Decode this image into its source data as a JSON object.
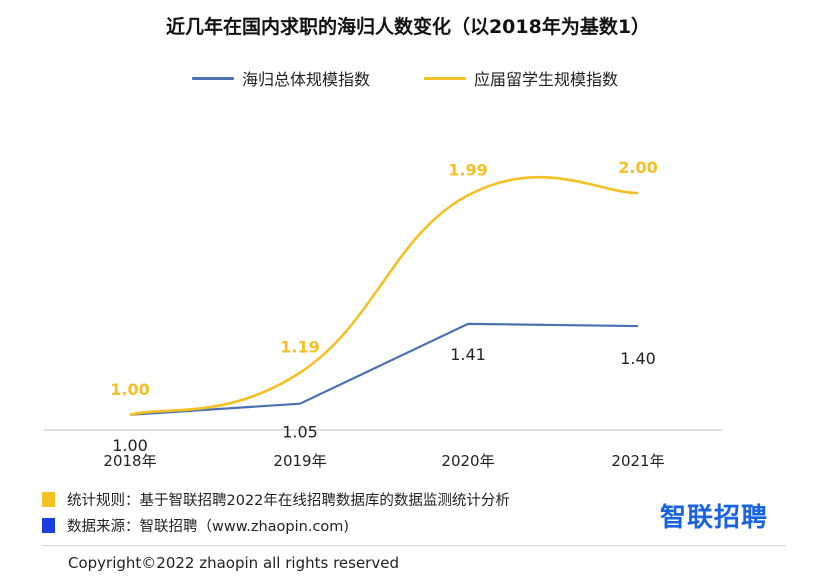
{
  "chart_data": {
    "type": "line",
    "title": "近几年在国内求职的海归人数变化（以2018年为基数1）",
    "categories": [
      "2018年",
      "2019年",
      "2020年",
      "2021年"
    ],
    "series": [
      {
        "name": "海归总体规模指数",
        "values": [
          1.0,
          1.05,
          1.41,
          1.4
        ],
        "labels": [
          "1.00",
          "1.05",
          "1.41",
          "1.40"
        ],
        "color": "#4a72b0"
      },
      {
        "name": "应届留学生规模指数",
        "values": [
          1.0,
          1.19,
          1.99,
          2.0
        ],
        "labels": [
          "1.00",
          "1.19",
          "1.99",
          "2.00"
        ],
        "color": "#f5c023"
      }
    ],
    "ylim": [
      0.3,
      2.6
    ],
    "grid": false,
    "legend_position": "top-center"
  },
  "notes": {
    "rule": "统计规则：基于智联招聘2022年在线招聘数据库的数据监测统计分析",
    "source": "数据来源：智联招聘（www.zhaopin.com)",
    "rule_color": "#f5c023",
    "source_color": "#1a3ee0"
  },
  "logo": "智联招聘",
  "copyright": "Copyright©2022 zhaopin all rights reserved"
}
